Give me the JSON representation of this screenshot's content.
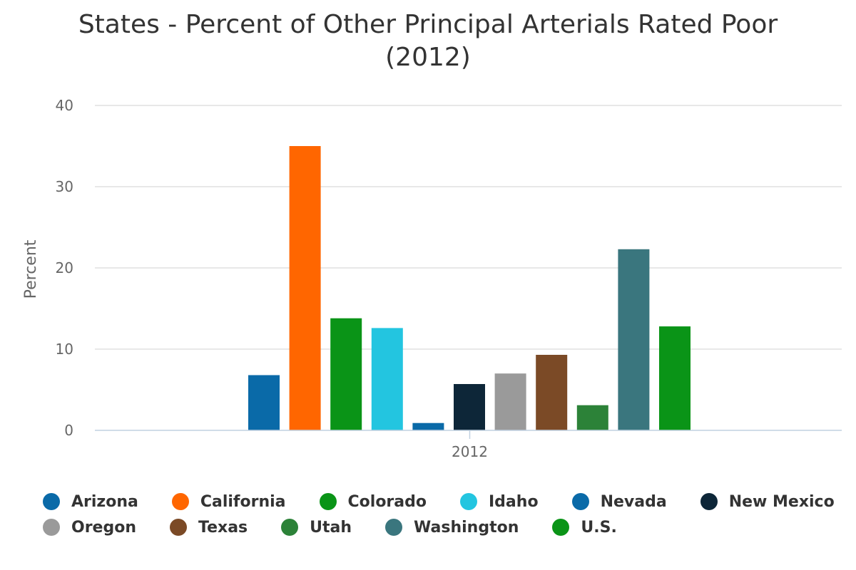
{
  "chart_data": {
    "type": "bar",
    "title": [
      "States - Percent of Other Principal Arterials Rated Poor",
      "(2012)"
    ],
    "ylabel": "Percent",
    "xlabel": "",
    "categories": [
      "2012"
    ],
    "ylim": [
      0,
      40
    ],
    "yticks": [
      0,
      10,
      20,
      30,
      40
    ],
    "grid": true,
    "legend_position": "bottom",
    "series": [
      {
        "name": "Arizona",
        "color": "#0a6aa8",
        "values": [
          6.8
        ]
      },
      {
        "name": "California",
        "color": "#ff6600",
        "values": [
          35.0
        ]
      },
      {
        "name": "Colorado",
        "color": "#0a9417",
        "values": [
          13.8
        ]
      },
      {
        "name": "Idaho",
        "color": "#23c5e0",
        "values": [
          12.6
        ]
      },
      {
        "name": "Nevada",
        "color": "#0a6aa8",
        "values": [
          0.9
        ]
      },
      {
        "name": "New Mexico",
        "color": "#0d2638",
        "values": [
          5.7
        ]
      },
      {
        "name": "Oregon",
        "color": "#9a9a9a",
        "values": [
          7.0
        ]
      },
      {
        "name": "Texas",
        "color": "#7b4a26",
        "values": [
          9.3
        ]
      },
      {
        "name": "Utah",
        "color": "#2c8238",
        "values": [
          3.1
        ]
      },
      {
        "name": "Washington",
        "color": "#3a767e",
        "values": [
          22.3
        ]
      },
      {
        "name": "U.S.",
        "color": "#0a9417",
        "values": [
          12.8
        ]
      }
    ]
  }
}
